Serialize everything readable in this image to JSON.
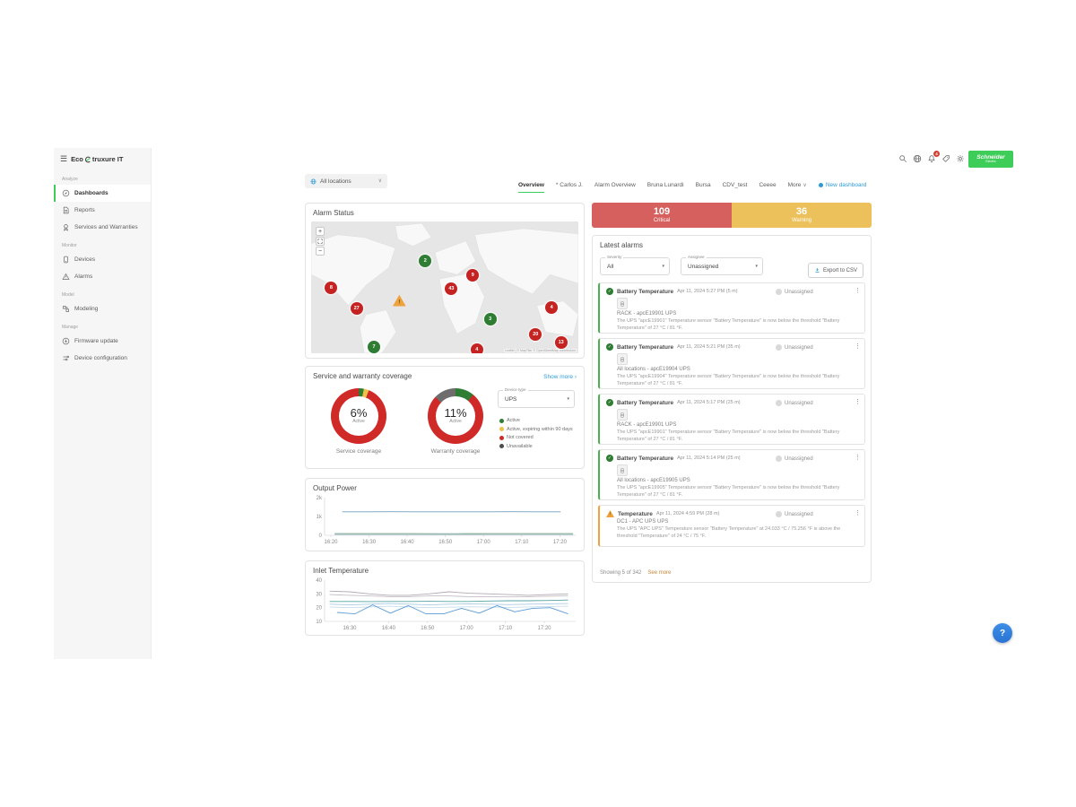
{
  "app": {
    "logo_prefix": "Eco",
    "logo_suffix": "truxure IT"
  },
  "sidebar": {
    "sections": [
      {
        "label": "Analyze",
        "items": [
          {
            "label": "Dashboards",
            "icon": "dashboards",
            "active": true
          },
          {
            "label": "Reports",
            "icon": "reports",
            "active": false
          },
          {
            "label": "Services and Warranties",
            "icon": "services",
            "active": false
          }
        ]
      },
      {
        "label": "Monitor",
        "items": [
          {
            "label": "Devices",
            "icon": "devices",
            "active": false
          },
          {
            "label": "Alarms",
            "icon": "alarms",
            "active": false
          }
        ]
      },
      {
        "label": "Model",
        "items": [
          {
            "label": "Modeling",
            "icon": "modeling",
            "active": false
          }
        ]
      },
      {
        "label": "Manage",
        "items": [
          {
            "label": "Firmware update",
            "icon": "firmware",
            "active": false
          },
          {
            "label": "Device configuration",
            "icon": "device-config",
            "active": false
          }
        ]
      }
    ]
  },
  "topbar": {
    "location": "All locations",
    "tabs": [
      {
        "label": "Overview",
        "active": true,
        "dropdown": false
      },
      {
        "label": "* Carlos J.",
        "active": false,
        "dropdown": false
      },
      {
        "label": "Alarm Overview",
        "active": false,
        "dropdown": false
      },
      {
        "label": "Bruna Lunardi",
        "active": false,
        "dropdown": false
      },
      {
        "label": "Bursa",
        "active": false,
        "dropdown": false
      },
      {
        "label": "CDV_test",
        "active": false,
        "dropdown": false
      },
      {
        "label": "Ceeee",
        "active": false,
        "dropdown": false
      },
      {
        "label": "More",
        "active": false,
        "dropdown": true
      }
    ],
    "new_dashboard": "New dashboard",
    "notification_count": "4",
    "schneider_line1": "Schneider",
    "schneider_line2": "Electric"
  },
  "alarm_status": {
    "title": "Alarm Status",
    "zoom_in": "+",
    "zoom_out": "−",
    "attribution": "Leaflet | © MapTiler © OpenStreetMap contributors",
    "markers": [
      {
        "count": "2",
        "type": "ok",
        "x": 42.7,
        "y": 30
      },
      {
        "count": "9",
        "type": "critical",
        "x": 60.5,
        "y": 41
      },
      {
        "count": "43",
        "type": "critical",
        "x": 52.5,
        "y": 51
      },
      {
        "count": "8",
        "type": "critical",
        "x": 7.5,
        "y": 50
      },
      {
        "count": "27",
        "type": "critical",
        "x": 17,
        "y": 66
      },
      {
        "count": "!",
        "type": "warning",
        "x": 33,
        "y": 60
      },
      {
        "count": "3",
        "type": "ok",
        "x": 67,
        "y": 74
      },
      {
        "count": "4",
        "type": "critical",
        "x": 90,
        "y": 65
      },
      {
        "count": "20",
        "type": "critical",
        "x": 84,
        "y": 86
      },
      {
        "count": "13",
        "type": "critical",
        "x": 93.5,
        "y": 92
      },
      {
        "count": "7",
        "type": "ok",
        "x": 23.5,
        "y": 95
      },
      {
        "count": "4",
        "type": "critical",
        "x": 62,
        "y": 97
      }
    ]
  },
  "summary": {
    "critical_value": "109",
    "critical_label": "Critical",
    "critical_color": "#d5605e",
    "warning_value": "36",
    "warning_label": "Warning",
    "warning_color": "#ecc05b"
  },
  "latest_alarms": {
    "title": "Latest alarms",
    "severity_label": "Severity",
    "severity_value": "All",
    "assignee_label": "Assignee",
    "assignee_value": "Unassigned",
    "export_label": "Export to CSV",
    "items": [
      {
        "severity": "ok",
        "title": "Battery Temperature",
        "time": "Apr 11, 2024 5:27 PM (5 m)",
        "assignee": "Unassigned",
        "location": "RACK - apcE19901 UPS",
        "description": "The UPS \"apcE19901\" Temperature sensor \"Battery Temperature\" is now below the threshold \"Battery Temperature\" of 27 °C / 81 °F.",
        "chip": true
      },
      {
        "severity": "ok",
        "title": "Battery Temperature",
        "time": "Apr 11, 2024 5:21 PM (35 m)",
        "assignee": "Unassigned",
        "location": "All locations - apcE19904 UPS",
        "description": "The UPS \"apcE19904\" Temperature sensor \"Battery Temperature\" is now below the threshold \"Battery Temperature\" of 27 °C / 81 °F.",
        "chip": true
      },
      {
        "severity": "ok",
        "title": "Battery Temperature",
        "time": "Apr 11, 2024 5:17 PM (25 m)",
        "assignee": "Unassigned",
        "location": "RACK - apcE19901 UPS",
        "description": "The UPS \"apcE19901\" Temperature sensor \"Battery Temperature\" is now below the threshold \"Battery Temperature\" of 27 °C / 81 °F.",
        "chip": true
      },
      {
        "severity": "ok",
        "title": "Battery Temperature",
        "time": "Apr 11, 2024 5:14 PM (25 m)",
        "assignee": "Unassigned",
        "location": "All locations - apcE19905 UPS",
        "description": "The UPS \"apcE19905\" Temperature sensor \"Battery Temperature\" is now below the threshold \"Battery Temperature\" of 27 °C / 81 °F.",
        "chip": true
      },
      {
        "severity": "warning",
        "title": "Temperature",
        "time": "Apr 11, 2024 4:59 PM (28 m)",
        "assignee": "Unassigned",
        "location": "DC1 - APC UPS UPS",
        "description": "The UPS \"APC UPS\" Temperature sensor \"Battery Temperature\" at 24.033 °C / 75.256 °F is above the threshold \"Temperature\" of 24 °C / 75 °F.",
        "chip": false
      }
    ],
    "showing": "Showing 5 of 342",
    "see_more": "See more"
  },
  "coverage": {
    "title": "Service and warranty coverage",
    "show_more": "Show more ›",
    "device_type_label": "Device type",
    "device_type_value": "UPS",
    "legend": [
      {
        "label": "Active",
        "color": "#2e7d32"
      },
      {
        "label": "Active, expiring within 90 days",
        "color": "#efc04a"
      },
      {
        "label": "Not covered",
        "color": "#cf2a27"
      },
      {
        "label": "Unavailable",
        "color": "#4d4d4d"
      }
    ]
  },
  "charts": {
    "output_title": "Output Power",
    "inlet_title": "Inlet Temperature"
  },
  "floating_help": "?",
  "chart_data": [
    {
      "id": "output-power",
      "type": "line",
      "title": "Output Power",
      "xlabel": "",
      "ylabel": "",
      "ylim": [
        0,
        2000
      ],
      "grid": false,
      "legend_position": "none",
      "yticks": [
        {
          "v": 0,
          "label": "0"
        },
        {
          "v": 1000,
          "label": "1k"
        },
        {
          "v": 2000,
          "label": "2k"
        }
      ],
      "xticks": [
        {
          "label": "16:20",
          "f": 0.025
        },
        {
          "label": "16:30",
          "f": 0.177
        },
        {
          "label": "16:40",
          "f": 0.329
        },
        {
          "label": "16:50",
          "f": 0.481
        },
        {
          "label": "17:00",
          "f": 0.633
        },
        {
          "label": "17:10",
          "f": 0.785
        },
        {
          "label": "17:20",
          "f": 0.937
        }
      ],
      "series": [
        {
          "name": "UPS output ~1.25 kW",
          "color": "#6f9fc0",
          "x0": 0.07,
          "x1": 0.94,
          "values": [
            1250,
            1250,
            1252,
            1250,
            1248,
            1250,
            1250,
            1251,
            1250,
            1250
          ]
        },
        {
          "name": "UPS output ~90 W",
          "color": "#7fae8f",
          "x0": 0.04,
          "x1": 0.99,
          "values": [
            90,
            90,
            92,
            90,
            88,
            90,
            90,
            90,
            91,
            90
          ]
        },
        {
          "name": "UPS output ~45 W",
          "color": "#9fb9c9",
          "x0": 0.04,
          "x1": 0.99,
          "values": [
            45,
            45,
            45,
            44,
            45,
            46,
            45,
            45,
            45,
            45
          ]
        }
      ]
    },
    {
      "id": "inlet-temperature",
      "type": "line",
      "title": "Inlet Temperature",
      "xlabel": "",
      "ylabel": "",
      "ylim": [
        10,
        40
      ],
      "grid": false,
      "legend_position": "none",
      "yticks": [
        {
          "v": 10,
          "label": "10"
        },
        {
          "v": 20,
          "label": "20"
        },
        {
          "v": 30,
          "label": "30"
        },
        {
          "v": 40,
          "label": "40"
        }
      ],
      "xticks": [
        {
          "label": "16:30",
          "f": 0.1
        },
        {
          "label": "16:40",
          "f": 0.255
        },
        {
          "label": "16:50",
          "f": 0.41
        },
        {
          "label": "17:00",
          "f": 0.565
        },
        {
          "label": "17:10",
          "f": 0.72
        },
        {
          "label": "17:20",
          "f": 0.875
        }
      ],
      "series": [
        {
          "name": "sensor-1",
          "color": "#b3abb3",
          "x0": 0.02,
          "x1": 0.97,
          "values": [
            32,
            31.5,
            30,
            29,
            29,
            30,
            31.5,
            30.5,
            30,
            29.5,
            29,
            29.5,
            30
          ]
        },
        {
          "name": "sensor-2",
          "color": "#c4bec4",
          "x0": 0.02,
          "x1": 0.97,
          "values": [
            29.5,
            29,
            28.5,
            28,
            28,
            28.5,
            28.5,
            28,
            28,
            27.8,
            28,
            28.3,
            28.7
          ]
        },
        {
          "name": "sensor-3",
          "color": "#55a3a5",
          "x0": 0.02,
          "x1": 0.97,
          "values": [
            24.5,
            24.5,
            24.4,
            24.5,
            24.5,
            24.6,
            24.5,
            24.5,
            24.8,
            25,
            25,
            25.2,
            25.5
          ]
        },
        {
          "name": "sensor-4",
          "color": "#a9cce2",
          "x0": 0.02,
          "x1": 0.97,
          "values": [
            22.5,
            22,
            22.5,
            23,
            22.5,
            22,
            22.5,
            22.8,
            22.5,
            22.2,
            22.5,
            22.8,
            23
          ]
        },
        {
          "name": "sensor-5",
          "color": "#c6dded",
          "x0": 0.02,
          "x1": 0.97,
          "values": [
            20.5,
            20,
            20.5,
            21,
            20.5,
            20,
            20.3,
            20.6,
            20.4,
            20.2,
            20.5,
            20.8,
            21
          ]
        },
        {
          "name": "sensor-6",
          "color": "#5b9bd5",
          "x0": 0.05,
          "x1": 0.97,
          "values": [
            16.5,
            15.5,
            22,
            16,
            21.5,
            15.5,
            15.5,
            19.5,
            16,
            21.5,
            17,
            19.5,
            20,
            15.5
          ]
        }
      ]
    },
    {
      "id": "service-coverage",
      "type": "pie",
      "title": "Service coverage",
      "center_value": "6%",
      "center_sub": "Active",
      "slices": [
        {
          "label": "Active",
          "color": "#2e7d32",
          "pct": 3
        },
        {
          "label": "Active, expiring within 90 days",
          "color": "#efc04a",
          "pct": 3
        },
        {
          "label": "Not covered",
          "color": "#cf2a27",
          "pct": 94
        }
      ]
    },
    {
      "id": "warranty-coverage",
      "type": "pie",
      "title": "Warranty coverage",
      "center_value": "11%",
      "center_sub": "Active",
      "slices": [
        {
          "label": "Active",
          "color": "#2e7d32",
          "pct": 11
        },
        {
          "label": "Not covered",
          "color": "#cf2a27",
          "pct": 76
        },
        {
          "label": "Unavailable",
          "color": "#6d6d6d",
          "pct": 13
        }
      ]
    }
  ]
}
